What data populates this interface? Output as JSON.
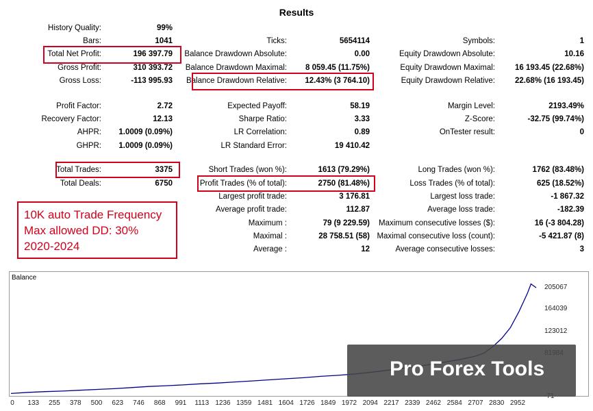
{
  "title": "Results",
  "stats": {
    "history_quality": {
      "label": "History Quality:",
      "value": "99%"
    },
    "bars": {
      "label": "Bars:",
      "value": "1041"
    },
    "total_net_profit": {
      "label": "Total Net Profit:",
      "value": "196 397.79"
    },
    "gross_profit": {
      "label": "Gross Profit:",
      "value": "310 393.72"
    },
    "gross_loss": {
      "label": "Gross Loss:",
      "value": "-113 995.93"
    },
    "profit_factor": {
      "label": "Profit Factor:",
      "value": "2.72"
    },
    "recovery_factor": {
      "label": "Recovery Factor:",
      "value": "12.13"
    },
    "ahpr": {
      "label": "AHPR:",
      "value": "1.0009 (0.09%)"
    },
    "ghpr": {
      "label": "GHPR:",
      "value": "1.0009 (0.09%)"
    },
    "total_trades": {
      "label": "Total Trades:",
      "value": "3375"
    },
    "total_deals": {
      "label": "Total Deals:",
      "value": "6750"
    },
    "ticks": {
      "label": "Ticks:",
      "value": "5654114"
    },
    "balance_dd_abs": {
      "label": "Balance Drawdown Absolute:",
      "value": "0.00"
    },
    "balance_dd_max": {
      "label": "Balance Drawdown Maximal:",
      "value": "8 059.45 (11.75%)"
    },
    "balance_dd_rel": {
      "label": "Balance Drawdown Relative:",
      "value": "12.43% (3 764.10)"
    },
    "expected_payoff": {
      "label": "Expected Payoff:",
      "value": "58.19"
    },
    "sharpe_ratio": {
      "label": "Sharpe Ratio:",
      "value": "3.33"
    },
    "lr_correlation": {
      "label": "LR Correlation:",
      "value": "0.89"
    },
    "lr_std_error": {
      "label": "LR Standard Error:",
      "value": "19 410.42"
    },
    "short_trades": {
      "label": "Short Trades (won %):",
      "value": "1613 (79.29%)"
    },
    "profit_trades": {
      "label": "Profit Trades (% of total):",
      "value": "2750 (81.48%)"
    },
    "largest_profit": {
      "label": "Largest profit trade:",
      "value": "3 176.81"
    },
    "average_profit": {
      "label": "Average profit trade:",
      "value": "112.87"
    },
    "maximum": {
      "label": "Maximum :",
      "value": "79 (9 229.59)"
    },
    "maximal": {
      "label": "Maximal :",
      "value": "28 758.51 (58)"
    },
    "average": {
      "label": "Average :",
      "value": "12"
    },
    "symbols": {
      "label": "Symbols:",
      "value": "1"
    },
    "equity_dd_abs": {
      "label": "Equity Drawdown Absolute:",
      "value": "10.16"
    },
    "equity_dd_max": {
      "label": "Equity Drawdown Maximal:",
      "value": "16 193.45 (22.68%)"
    },
    "equity_dd_rel": {
      "label": "Equity Drawdown Relative:",
      "value": "22.68% (16 193.45)"
    },
    "margin_level": {
      "label": "Margin Level:",
      "value": "2193.49%"
    },
    "z_score": {
      "label": "Z-Score:",
      "value": "-32.75 (99.74%)"
    },
    "ontester": {
      "label": "OnTester result:",
      "value": "0"
    },
    "long_trades": {
      "label": "Long Trades (won %):",
      "value": "1762 (83.48%)"
    },
    "loss_trades": {
      "label": "Loss Trades (% of total):",
      "value": "625 (18.52%)"
    },
    "largest_loss": {
      "label": "Largest loss trade:",
      "value": "-1 867.32"
    },
    "average_loss": {
      "label": "Average loss trade:",
      "value": "-182.39"
    },
    "max_consec_losses": {
      "label": "Maximum consecutive losses ($):",
      "value": "16 (-3 804.28)"
    },
    "maximal_consec_loss": {
      "label": "Maximal consecutive loss (count):",
      "value": "-5 421.87 (8)"
    },
    "avg_consec_losses": {
      "label": "Average consecutive losses:",
      "value": "3"
    }
  },
  "note": {
    "line1": "10K auto Trade Frequency",
    "line2": "Max allowed DD: 30%",
    "line3": "2020-2024"
  },
  "watermark": "Pro Forex Tools",
  "colors": {
    "highlight": "#d0021b",
    "balance_line": "#00008b"
  },
  "chart_data": {
    "type": "line",
    "title": "Balance",
    "x_ticks": [
      "0",
      "133",
      "255",
      "378",
      "500",
      "623",
      "746",
      "868",
      "991",
      "1113",
      "1236",
      "1359",
      "1481",
      "1604",
      "1726",
      "1849",
      "1972",
      "2094",
      "2217",
      "2339",
      "2462",
      "2584",
      "2707",
      "2830",
      "2952"
    ],
    "y_ticks": [
      "205067",
      "164039",
      "123012",
      "81984",
      "-71"
    ],
    "ylim": [
      -71,
      205067
    ],
    "series": [
      {
        "name": "Balance",
        "x": [
          0,
          100,
          200,
          300,
          400,
          500,
          600,
          700,
          800,
          900,
          1000,
          1100,
          1200,
          1300,
          1400,
          1500,
          1600,
          1700,
          1800,
          1900,
          2000,
          2100,
          2200,
          2300,
          2400,
          2500,
          2600,
          2700,
          2750,
          2800,
          2850,
          2900,
          2950,
          3000,
          3020,
          3050
        ],
        "y": [
          2000,
          4000,
          5500,
          6500,
          8000,
          9500,
          11000,
          13000,
          15000,
          16500,
          18000,
          20000,
          21500,
          23500,
          25500,
          27500,
          29500,
          31500,
          34000,
          36000,
          38500,
          42000,
          46000,
          50000,
          54500,
          59500,
          65000,
          72000,
          78000,
          90000,
          105000,
          125000,
          155000,
          190000,
          207000,
          200000
        ]
      }
    ]
  }
}
